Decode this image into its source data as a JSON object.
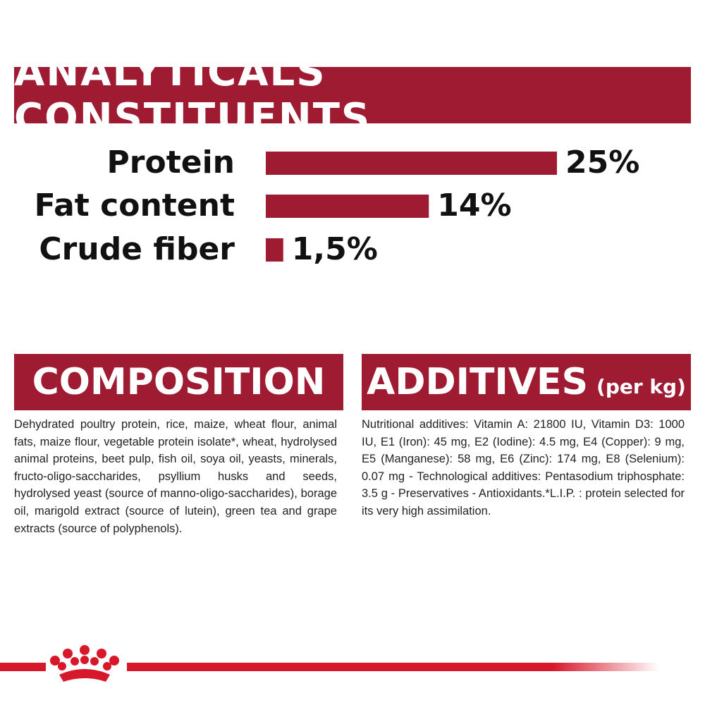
{
  "chart_data": {
    "type": "bar",
    "title": "ANALYTICALS CONSTITUENTS",
    "categories": [
      "Protein",
      "Fat content",
      "Crude fiber"
    ],
    "values": [
      25,
      14,
      1.5
    ],
    "value_labels": [
      "25%",
      "14%",
      "1,5%"
    ],
    "color": "#9e1b32"
  },
  "composition": {
    "title": "COMPOSITION",
    "text": "Dehydrated poultry protein, rice, maize, wheat flour, animal fats, maize flour, vegetable protein isolate*, wheat, hydrolysed animal proteins, beet pulp, fish oil, soya oil, yeasts, minerals, fructo-oligo-saccharides, psyllium husks and seeds, hydrolysed yeast (source of manno-oligo-saccharides), borage oil, marigold extract (source of lutein), green tea and grape extracts (source of polyphenols)."
  },
  "additives": {
    "title": "ADDITIVES",
    "unit": "(per kg)",
    "text": "Nutritional additives: Vitamin A: 21800 IU, Vitamin D3: 1000 IU, E1 (Iron): 45 mg, E2 (Iodine): 4.5 mg, E4 (Copper): 9 mg, E5 (Manganese): 58 mg, E6 (Zinc): 174 mg, E8 (Selenium): 0.07 mg - Technological additives: Pentasodium triphosphate: 3.5 g - Preservatives - Antioxidants.*L.I.P. : protein selected for its very high assimilation."
  }
}
